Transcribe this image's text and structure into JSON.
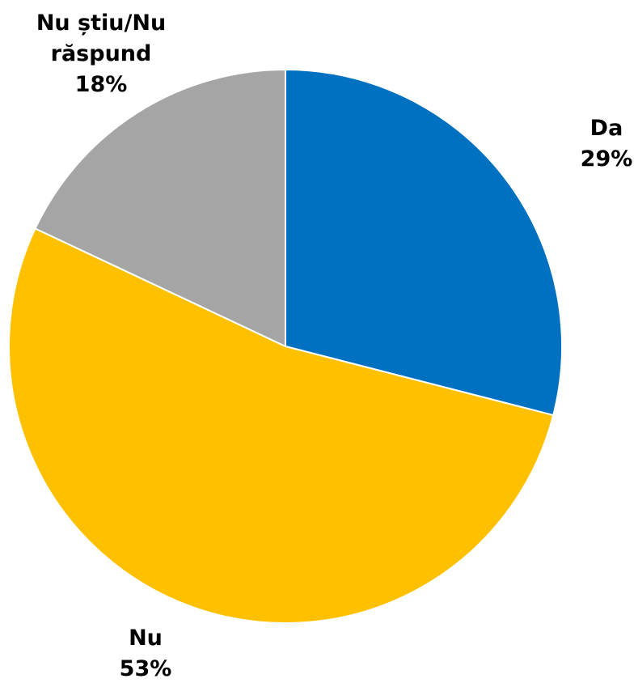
{
  "chart_data": {
    "type": "pie",
    "categories": [
      "Da",
      "Nu",
      "Nu știu/Nu răspund"
    ],
    "values": [
      29,
      53,
      18
    ],
    "value_labels": [
      "29%",
      "53%",
      "18%"
    ],
    "colors": [
      "#0070C0",
      "#FFC000",
      "#A5A5A5"
    ]
  }
}
